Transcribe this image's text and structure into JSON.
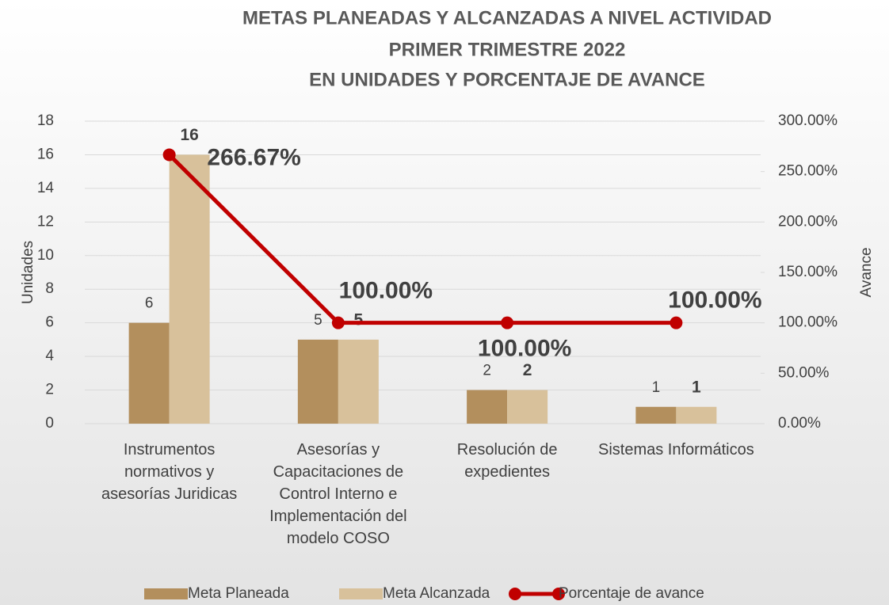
{
  "chart_data": {
    "type": "bar",
    "title": [
      "METAS PLANEADAS Y ALCANZADAS A NIVEL ACTIVIDAD",
      "PRIMER TRIMESTRE 2022",
      "EN UNIDADES Y PORCENTAJE DE AVANCE"
    ],
    "y_label": "Unidades",
    "y2_label": "Avance",
    "categories": [
      "Instrumentos normativos y asesorías Juridicas",
      "Asesorías y Capacitaciones de Control Interno e Implementación del modelo COSO",
      "Resolución de expedientes",
      "Sistemas Informáticos"
    ],
    "series": [
      {
        "name": "Meta Planeada",
        "type": "bar",
        "color": "#b38f5d",
        "values": [
          6,
          5,
          2,
          1
        ]
      },
      {
        "name": "Meta Alcanzada",
        "type": "bar",
        "color": "#d8c19b",
        "values": [
          16,
          5,
          2,
          1
        ]
      },
      {
        "name": "Porcentaje de avance",
        "type": "line",
        "axis": "y2",
        "color": "#c00000",
        "values": [
          266.67,
          100,
          100,
          100
        ],
        "value_labels": [
          "266.67%",
          "100.00%",
          "100.00%",
          "100.00%"
        ]
      }
    ],
    "ylim": [
      0,
      18
    ],
    "yticks": [
      0,
      2,
      4,
      6,
      8,
      10,
      12,
      14,
      16,
      18
    ],
    "y2lim": [
      0,
      300
    ],
    "y2ticks": [
      {
        "value": 0,
        "label": "0.00%"
      },
      {
        "value": 50,
        "label": "50.00%"
      },
      {
        "value": 100,
        "label": "100.00%"
      },
      {
        "value": 150,
        "label": "150.00%"
      },
      {
        "value": 200,
        "label": "200.00%"
      },
      {
        "value": 250,
        "label": "250.00%"
      },
      {
        "value": 300,
        "label": "300.00%"
      }
    ],
    "grid": true,
    "legend": "bottom"
  }
}
